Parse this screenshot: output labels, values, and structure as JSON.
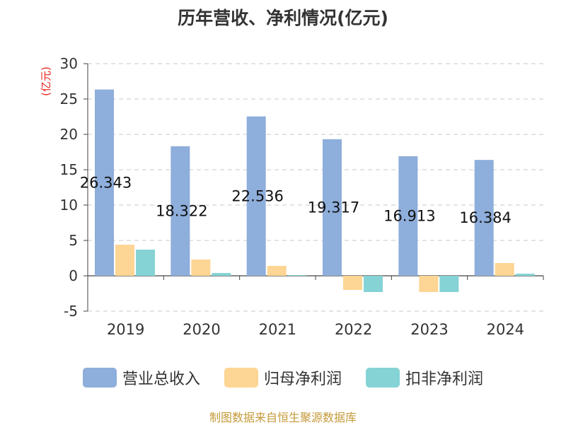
{
  "chart_data": {
    "type": "bar",
    "title": "历年营收、净利情况(亿元)",
    "ylabel": "(亿元)",
    "xlabel": "",
    "categories": [
      "2019",
      "2020",
      "2021",
      "2022",
      "2023",
      "2024"
    ],
    "ylim": [
      -5,
      30
    ],
    "yticks": [
      -5,
      0,
      5,
      10,
      15,
      20,
      25,
      30
    ],
    "grid": true,
    "legend_position": "bottom",
    "series": [
      {
        "name": "营业总收入",
        "color": "#8eaedb",
        "values": [
          26.343,
          18.322,
          22.536,
          19.317,
          16.913,
          16.384
        ],
        "data_labels": [
          "26.343",
          "18.322",
          "22.536",
          "19.317",
          "16.913",
          "16.384"
        ]
      },
      {
        "name": "归母净利润",
        "color": "#fdd594",
        "values": [
          4.4,
          2.3,
          1.4,
          -2.0,
          -2.3,
          1.8
        ]
      },
      {
        "name": "扣非净利润",
        "color": "#86d3d6",
        "values": [
          3.7,
          0.4,
          0.1,
          -2.3,
          -2.3,
          0.3
        ]
      }
    ]
  },
  "source": "制图数据来自恒生聚源数据库"
}
